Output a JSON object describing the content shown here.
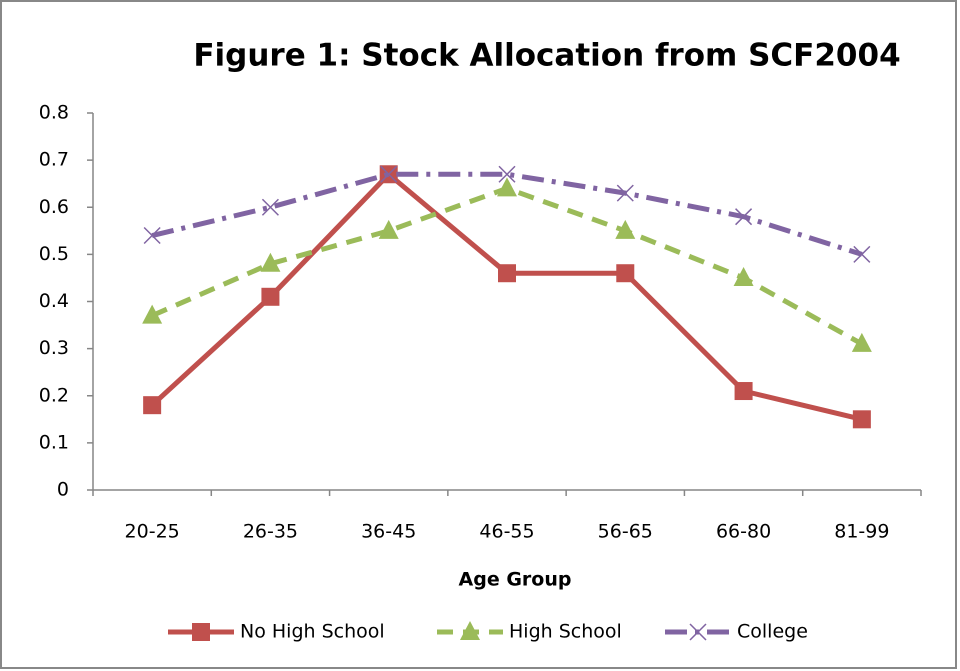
{
  "chart_data": {
    "type": "line",
    "title": "Figure 1: Stock Allocation from SCF2004",
    "x_label": "Age Group",
    "categories": [
      "20-25",
      "26-35",
      "36-45",
      "46-55",
      "56-65",
      "66-80",
      "81-99"
    ],
    "series": [
      {
        "name": "No High School",
        "color": "#c0504d",
        "values": [
          0.18,
          0.41,
          0.67,
          0.46,
          0.46,
          0.21,
          0.15
        ]
      },
      {
        "name": "High School",
        "color": "#9bbb59",
        "values": [
          0.37,
          0.48,
          0.55,
          0.64,
          0.55,
          0.45,
          0.31
        ]
      },
      {
        "name": "College",
        "color": "#8064a2",
        "values": [
          0.54,
          0.6,
          0.67,
          0.67,
          0.63,
          0.58,
          0.5
        ]
      }
    ],
    "ylim": [
      0,
      0.8
    ],
    "yticks": [
      0,
      0.1,
      0.2,
      0.3,
      0.4,
      0.5,
      0.6,
      0.7,
      0.8
    ],
    "grid": false,
    "legend": "bottom"
  }
}
